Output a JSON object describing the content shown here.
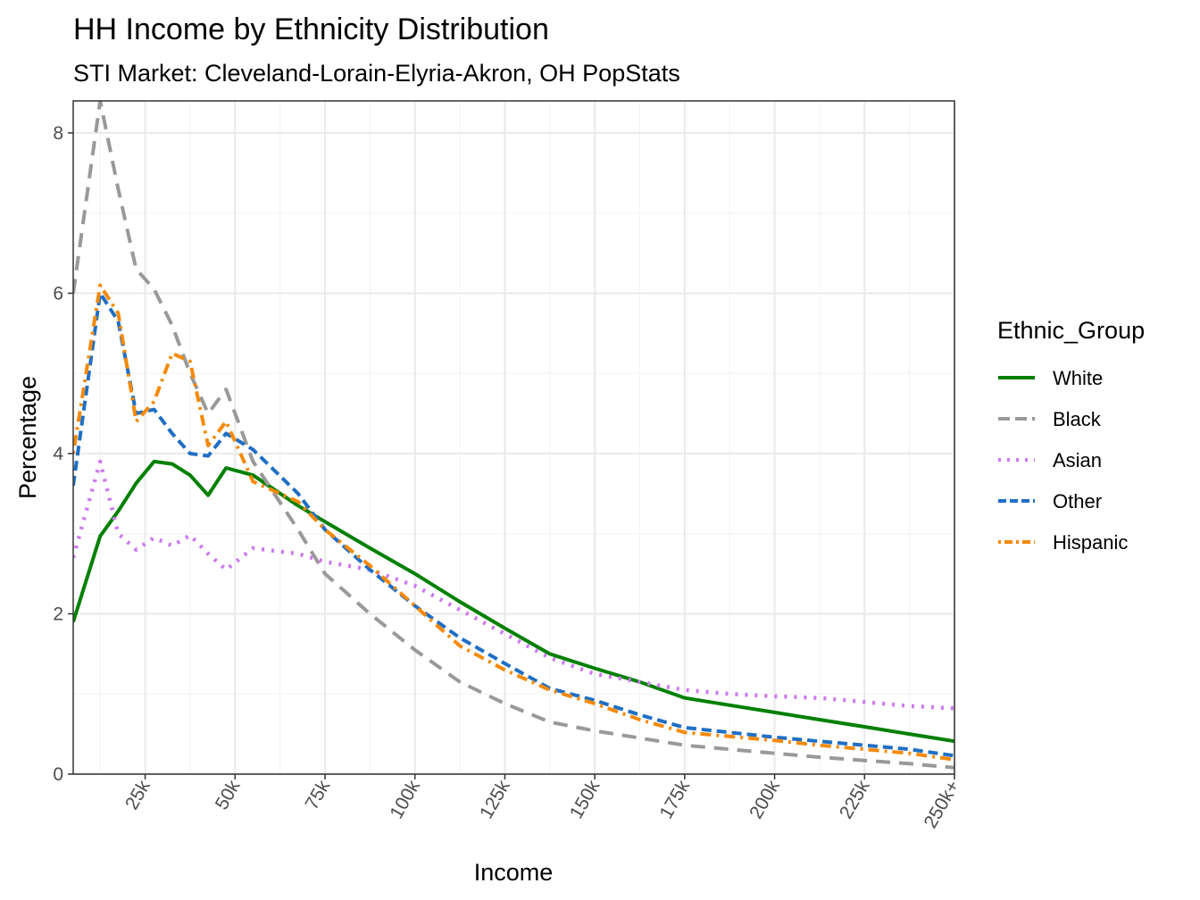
{
  "chart_data": {
    "type": "line",
    "title": "HH Income by Ethnicity Distribution",
    "subtitle": "STI Market: Cleveland-Lorain-Elyria-Akron, OH PopStats",
    "xlabel": "Income",
    "ylabel": "Percentage",
    "xlim": [
      5,
      250
    ],
    "ylim": [
      0,
      8.4
    ],
    "x_ticks": [
      {
        "value": 25,
        "label": "25k"
      },
      {
        "value": 50,
        "label": "50k"
      },
      {
        "value": 75,
        "label": "75k"
      },
      {
        "value": 100,
        "label": "100k"
      },
      {
        "value": 125,
        "label": "125k"
      },
      {
        "value": 150,
        "label": "150k"
      },
      {
        "value": 175,
        "label": "175k"
      },
      {
        "value": 200,
        "label": "200k"
      },
      {
        "value": 225,
        "label": "225k"
      },
      {
        "value": 250,
        "label": "250k+"
      }
    ],
    "y_ticks": [
      0,
      2,
      4,
      6,
      8
    ],
    "grid": true,
    "legend_title": "Ethnic_Group",
    "legend_position": "right",
    "x": [
      5,
      12.5,
      17.5,
      22.5,
      27.5,
      32.5,
      37.5,
      42.5,
      47.5,
      55,
      67.5,
      75,
      87.5,
      100,
      112.5,
      125,
      137.5,
      150,
      162.5,
      175,
      187.5,
      200,
      212.5,
      225,
      237.5,
      250
    ],
    "series": [
      {
        "name": "White",
        "color": "#008000",
        "dash": "solid",
        "values": [
          1.9,
          2.97,
          3.28,
          3.63,
          3.9,
          3.87,
          3.73,
          3.48,
          3.82,
          3.73,
          3.35,
          3.15,
          2.82,
          2.5,
          2.15,
          1.82,
          1.5,
          1.32,
          1.15,
          0.95,
          0.86,
          0.77,
          0.68,
          0.59,
          0.5,
          0.41
        ]
      },
      {
        "name": "Black",
        "color": "#999999",
        "dash": "long",
        "values": [
          6.0,
          8.4,
          7.3,
          6.3,
          6.05,
          5.6,
          5.0,
          4.5,
          4.8,
          3.9,
          3.05,
          2.5,
          2.0,
          1.55,
          1.15,
          0.88,
          0.65,
          0.54,
          0.45,
          0.36,
          0.31,
          0.26,
          0.21,
          0.17,
          0.13,
          0.08
        ]
      },
      {
        "name": "Asian",
        "color": "#CC79F0",
        "dash": "dotted",
        "values": [
          2.7,
          3.9,
          3.0,
          2.8,
          2.95,
          2.85,
          2.98,
          2.75,
          2.55,
          2.82,
          2.75,
          2.65,
          2.55,
          2.35,
          2.05,
          1.75,
          1.45,
          1.25,
          1.15,
          1.05,
          1.0,
          0.97,
          0.95,
          0.9,
          0.85,
          0.82
        ]
      },
      {
        "name": "Other",
        "color": "#1F6FC5",
        "dash": "dash",
        "values": [
          3.6,
          6.0,
          5.65,
          4.5,
          4.55,
          4.25,
          4.0,
          3.97,
          4.25,
          4.05,
          3.5,
          3.05,
          2.55,
          2.1,
          1.7,
          1.38,
          1.07,
          0.92,
          0.74,
          0.58,
          0.52,
          0.46,
          0.41,
          0.36,
          0.31,
          0.23
        ]
      },
      {
        "name": "Hispanic",
        "color": "#F58A07",
        "dash": "dotdash",
        "values": [
          4.0,
          6.1,
          5.75,
          4.4,
          4.65,
          5.25,
          5.15,
          4.1,
          4.4,
          3.65,
          3.4,
          3.05,
          2.6,
          2.1,
          1.6,
          1.3,
          1.05,
          0.88,
          0.68,
          0.52,
          0.47,
          0.42,
          0.36,
          0.31,
          0.26,
          0.18
        ]
      }
    ]
  }
}
